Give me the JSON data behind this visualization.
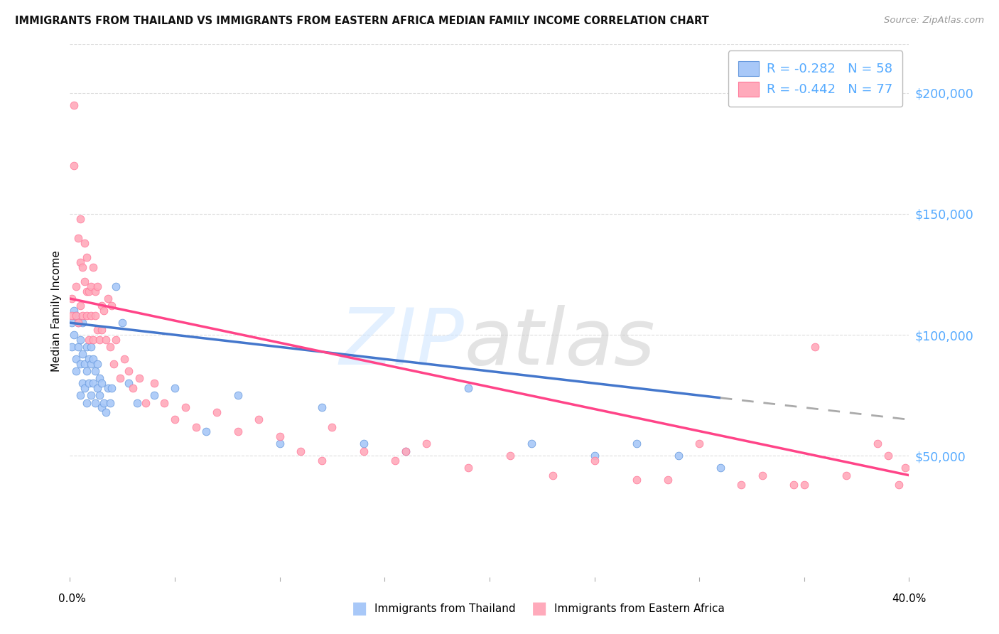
{
  "title": "IMMIGRANTS FROM THAILAND VS IMMIGRANTS FROM EASTERN AFRICA MEDIAN FAMILY INCOME CORRELATION CHART",
  "source": "Source: ZipAtlas.com",
  "ylabel": "Median Family Income",
  "legend_label1": "Immigrants from Thailand",
  "legend_label2": "Immigrants from Eastern Africa",
  "R1": -0.282,
  "N1": 58,
  "R2": -0.442,
  "N2": 77,
  "color_blue_fill": "#a8c8f8",
  "color_blue_edge": "#6699dd",
  "color_blue_line": "#4477cc",
  "color_pink_fill": "#ffaabb",
  "color_pink_edge": "#ff7799",
  "color_pink_line": "#ff4488",
  "color_dashed": "#aaaaaa",
  "color_ytick": "#55aaff",
  "color_grid": "#dddddd",
  "ytick_values": [
    50000,
    100000,
    150000,
    200000
  ],
  "ytick_labels": [
    "$50,000",
    "$100,000",
    "$150,000",
    "$200,000"
  ],
  "xlim": [
    0.0,
    0.4
  ],
  "ylim": [
    0,
    220000
  ],
  "thailand_x": [
    0.001,
    0.001,
    0.002,
    0.002,
    0.003,
    0.003,
    0.003,
    0.004,
    0.004,
    0.005,
    0.005,
    0.005,
    0.006,
    0.006,
    0.006,
    0.007,
    0.007,
    0.008,
    0.008,
    0.008,
    0.009,
    0.009,
    0.01,
    0.01,
    0.01,
    0.011,
    0.011,
    0.012,
    0.012,
    0.013,
    0.013,
    0.014,
    0.014,
    0.015,
    0.015,
    0.016,
    0.017,
    0.018,
    0.019,
    0.02,
    0.022,
    0.025,
    0.028,
    0.032,
    0.04,
    0.05,
    0.065,
    0.08,
    0.1,
    0.12,
    0.14,
    0.16,
    0.19,
    0.22,
    0.25,
    0.27,
    0.29,
    0.31
  ],
  "thailand_y": [
    105000,
    95000,
    100000,
    110000,
    90000,
    108000,
    85000,
    95000,
    105000,
    88000,
    98000,
    75000,
    92000,
    80000,
    105000,
    78000,
    88000,
    95000,
    72000,
    85000,
    80000,
    90000,
    75000,
    88000,
    95000,
    80000,
    90000,
    72000,
    85000,
    78000,
    88000,
    75000,
    82000,
    70000,
    80000,
    72000,
    68000,
    78000,
    72000,
    78000,
    120000,
    105000,
    80000,
    72000,
    75000,
    78000,
    60000,
    75000,
    55000,
    70000,
    55000,
    52000,
    78000,
    55000,
    50000,
    55000,
    50000,
    45000
  ],
  "eastern_x": [
    0.001,
    0.001,
    0.002,
    0.002,
    0.003,
    0.003,
    0.004,
    0.004,
    0.005,
    0.005,
    0.005,
    0.006,
    0.006,
    0.007,
    0.007,
    0.008,
    0.008,
    0.008,
    0.009,
    0.009,
    0.01,
    0.01,
    0.011,
    0.011,
    0.012,
    0.012,
    0.013,
    0.013,
    0.014,
    0.015,
    0.015,
    0.016,
    0.017,
    0.018,
    0.019,
    0.02,
    0.021,
    0.022,
    0.024,
    0.026,
    0.028,
    0.03,
    0.033,
    0.036,
    0.04,
    0.045,
    0.05,
    0.055,
    0.06,
    0.07,
    0.08,
    0.09,
    0.1,
    0.11,
    0.125,
    0.14,
    0.155,
    0.17,
    0.19,
    0.21,
    0.23,
    0.25,
    0.27,
    0.3,
    0.33,
    0.35,
    0.37,
    0.385,
    0.39,
    0.395,
    0.398,
    0.355,
    0.345,
    0.12,
    0.16,
    0.285,
    0.32
  ],
  "eastern_y": [
    115000,
    108000,
    195000,
    170000,
    108000,
    120000,
    140000,
    105000,
    130000,
    148000,
    112000,
    128000,
    108000,
    122000,
    138000,
    118000,
    108000,
    132000,
    98000,
    118000,
    120000,
    108000,
    128000,
    98000,
    118000,
    108000,
    102000,
    120000,
    98000,
    112000,
    102000,
    110000,
    98000,
    115000,
    95000,
    112000,
    88000,
    98000,
    82000,
    90000,
    85000,
    78000,
    82000,
    72000,
    80000,
    72000,
    65000,
    70000,
    62000,
    68000,
    60000,
    65000,
    58000,
    52000,
    62000,
    52000,
    48000,
    55000,
    45000,
    50000,
    42000,
    48000,
    40000,
    55000,
    42000,
    38000,
    42000,
    55000,
    50000,
    38000,
    45000,
    95000,
    38000,
    48000,
    52000,
    40000,
    38000
  ]
}
